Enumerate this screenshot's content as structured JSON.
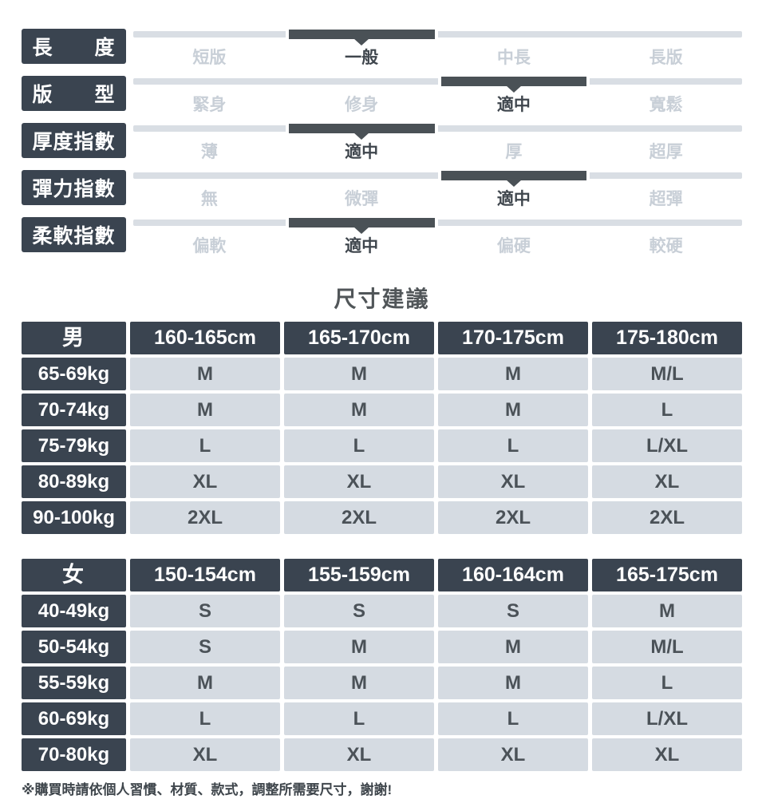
{
  "page": {
    "section_title": "尺寸建議",
    "footnote": "※購買時請依個人習慣、材質、款式，調整所需要尺寸，謝謝!"
  },
  "colors": {
    "dark_slate": "#3a4450",
    "slider_bar_dark": "#4a5156",
    "slider_track_light": "#d9dee4",
    "inactive_option_text": "#c8cfd7",
    "active_option_text": "#3f464d",
    "cell_background": "#d5dbe2",
    "cell_text": "#4b5258"
  },
  "attribute_sliders": [
    {
      "label": "長度",
      "label_display": "長　　度",
      "options": [
        "短版",
        "一般",
        "中長",
        "長版"
      ],
      "selected": "一般",
      "selected_index": 1
    },
    {
      "label": "版型",
      "label_display": "版　　型",
      "options": [
        "緊身",
        "修身",
        "適中",
        "寬鬆"
      ],
      "selected": "適中",
      "selected_index": 2
    },
    {
      "label": "厚度指數",
      "label_display": "厚度指數",
      "options": [
        "薄",
        "適中",
        "厚",
        "超厚"
      ],
      "selected": "適中",
      "selected_index": 1
    },
    {
      "label": "彈力指數",
      "label_display": "彈力指數",
      "options": [
        "無",
        "微彈",
        "適中",
        "超彈"
      ],
      "selected": "適中",
      "selected_index": 2
    },
    {
      "label": "柔軟指數",
      "label_display": "柔軟指數",
      "options": [
        "偏軟",
        "適中",
        "偏硬",
        "較硬"
      ],
      "selected": "適中",
      "selected_index": 1
    }
  ],
  "size_tables": [
    {
      "gender": "男",
      "height_columns": [
        "160-165cm",
        "165-170cm",
        "170-175cm",
        "175-180cm"
      ],
      "rows": [
        {
          "weight": "65-69kg",
          "sizes": [
            "M",
            "M",
            "M",
            "M/L"
          ]
        },
        {
          "weight": "70-74kg",
          "sizes": [
            "M",
            "M",
            "M",
            "L"
          ]
        },
        {
          "weight": "75-79kg",
          "sizes": [
            "L",
            "L",
            "L",
            "L/XL"
          ]
        },
        {
          "weight": "80-89kg",
          "sizes": [
            "XL",
            "XL",
            "XL",
            "XL"
          ]
        },
        {
          "weight": "90-100kg",
          "sizes": [
            "2XL",
            "2XL",
            "2XL",
            "2XL"
          ]
        }
      ]
    },
    {
      "gender": "女",
      "height_columns": [
        "150-154cm",
        "155-159cm",
        "160-164cm",
        "165-175cm"
      ],
      "rows": [
        {
          "weight": "40-49kg",
          "sizes": [
            "S",
            "S",
            "S",
            "M"
          ]
        },
        {
          "weight": "50-54kg",
          "sizes": [
            "S",
            "M",
            "M",
            "M/L"
          ]
        },
        {
          "weight": "55-59kg",
          "sizes": [
            "M",
            "M",
            "M",
            "L"
          ]
        },
        {
          "weight": "60-69kg",
          "sizes": [
            "L",
            "L",
            "L",
            "L/XL"
          ]
        },
        {
          "weight": "70-80kg",
          "sizes": [
            "XL",
            "XL",
            "XL",
            "XL"
          ]
        }
      ]
    }
  ]
}
